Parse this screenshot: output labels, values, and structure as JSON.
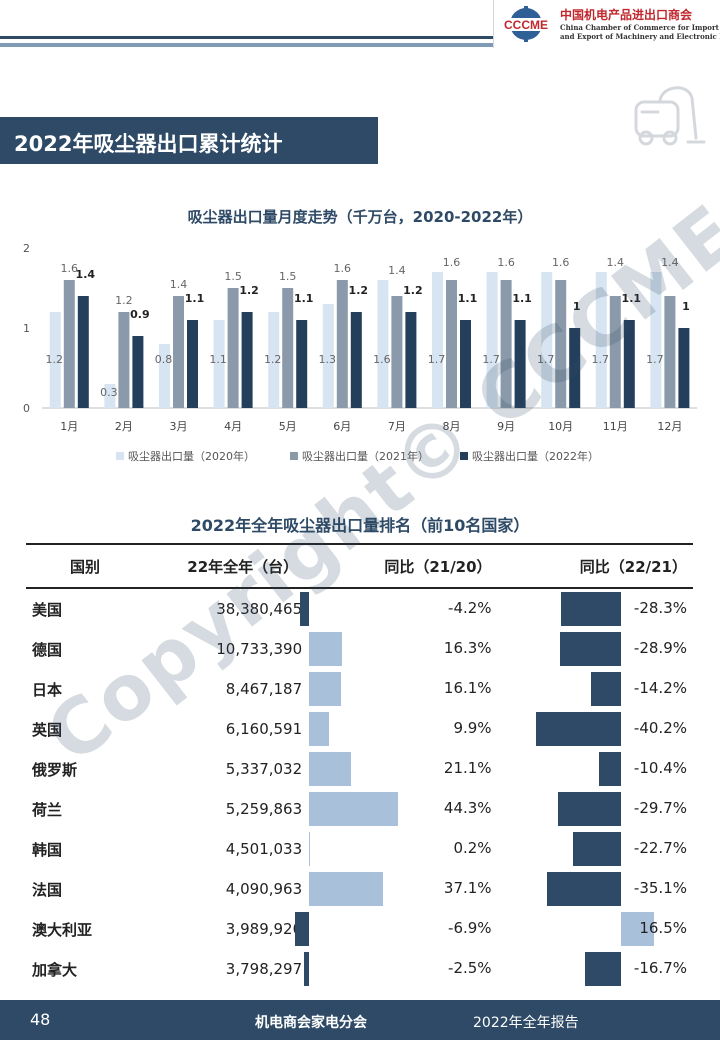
{
  "header": {
    "logo_mark": "CCCME",
    "org_cn": "中国机电产品进出口商会",
    "org_en_line1": "China Chamber of Commerce for Import",
    "org_en_line2": "and Export of Machinery and Electronic Products"
  },
  "section_title": "2022年吸尘器出口累计统计",
  "colors": {
    "navy": "#2e4a66",
    "s2020": "#d7e4f1",
    "s2021": "#8a9aab",
    "s2022": "#233f5c",
    "light_bar": "#a8c0da"
  },
  "chart_data": {
    "type": "bar",
    "title": "吸尘器出口量月度走势（千万台，2020-2022年）",
    "categories": [
      "1月",
      "2月",
      "3月",
      "4月",
      "5月",
      "6月",
      "7月",
      "8月",
      "9月",
      "10月",
      "11月",
      "12月"
    ],
    "series": [
      {
        "name": "吸尘器出口量（2020年）",
        "values": [
          1.2,
          0.3,
          0.8,
          1.1,
          1.2,
          1.3,
          1.6,
          1.7,
          1.7,
          1.7,
          1.7,
          1.7
        ]
      },
      {
        "name": "吸尘器出口量（2021年）",
        "values": [
          1.6,
          1.2,
          1.4,
          1.5,
          1.5,
          1.6,
          1.4,
          1.6,
          1.6,
          1.6,
          1.4,
          1.4
        ]
      },
      {
        "name": "吸尘器出口量（2022年）",
        "values": [
          1.4,
          0.9,
          1.1,
          1.2,
          1.1,
          1.2,
          1.2,
          1.1,
          1.1,
          1.0,
          1.1,
          1.0
        ]
      }
    ],
    "yticks": [
      0,
      1,
      2
    ],
    "ylim": [
      0,
      2
    ],
    "legend": "bottom"
  },
  "table": {
    "title": "2022年全年吸尘器出口量排名（前10名国家）",
    "headers": [
      "国别",
      "22年全年（台）",
      "同比（21/20）",
      "同比（22/21）"
    ],
    "rows": [
      {
        "country": "美国",
        "total": "38,380,465",
        "yoy1": "-4.2%",
        "yoy1_val": -4.2,
        "yoy2": "-28.3%",
        "yoy2_val": -28.3
      },
      {
        "country": "德国",
        "total": "10,733,390",
        "yoy1": "16.3%",
        "yoy1_val": 16.3,
        "yoy2": "-28.9%",
        "yoy2_val": -28.9
      },
      {
        "country": "日本",
        "total": "8,467,187",
        "yoy1": "16.1%",
        "yoy1_val": 16.1,
        "yoy2": "-14.2%",
        "yoy2_val": -14.2
      },
      {
        "country": "英国",
        "total": "6,160,591",
        "yoy1": "9.9%",
        "yoy1_val": 9.9,
        "yoy2": "-40.2%",
        "yoy2_val": -40.2
      },
      {
        "country": "俄罗斯",
        "total": "5,337,032",
        "yoy1": "21.1%",
        "yoy1_val": 21.1,
        "yoy2": "-10.4%",
        "yoy2_val": -10.4
      },
      {
        "country": "荷兰",
        "total": "5,259,863",
        "yoy1": "44.3%",
        "yoy1_val": 44.3,
        "yoy2": "-29.7%",
        "yoy2_val": -29.7
      },
      {
        "country": "韩国",
        "total": "4,501,033",
        "yoy1": "0.2%",
        "yoy1_val": 0.2,
        "yoy2": "-22.7%",
        "yoy2_val": -22.7
      },
      {
        "country": "法国",
        "total": "4,090,963",
        "yoy1": "37.1%",
        "yoy1_val": 37.1,
        "yoy2": "-35.1%",
        "yoy2_val": -35.1
      },
      {
        "country": "澳大利亚",
        "total": "3,989,920",
        "yoy1": "-6.9%",
        "yoy1_val": -6.9,
        "yoy2": "16.5%",
        "yoy2_val": 16.5
      },
      {
        "country": "加拿大",
        "total": "3,798,297",
        "yoy1": "-2.5%",
        "yoy1_val": -2.5,
        "yoy2": "-16.7%",
        "yoy2_val": -16.7
      }
    ]
  },
  "watermark": "Copyright© CCCME",
  "footer": {
    "page": "48",
    "center": "机电商会家电分会",
    "right": "2022年全年报告"
  }
}
